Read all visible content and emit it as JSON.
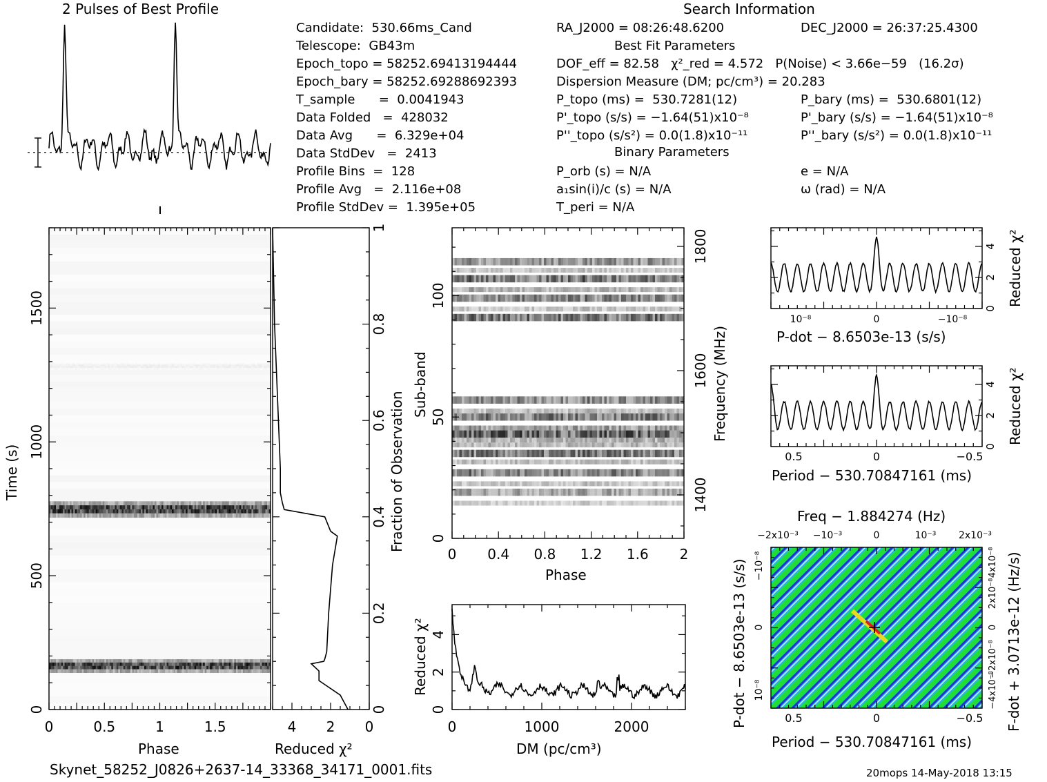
{
  "header": {
    "profile_title": "2 Pulses of Best Profile",
    "search_info_title": "Search Information",
    "best_fit_title": "Best Fit Parameters",
    "binary_title": "Binary Parameters"
  },
  "info_left": [
    "Candidate:  530.66ms_Cand",
    "Telescope:  GB43m",
    "Epoch_topo = 58252.69413194444",
    "Epoch_bary = 58252.69288692393",
    "T_sample      =  0.0041943",
    "Data Folded   =  428032",
    "Data Avg      =  6.329e+04",
    "Data StdDev   =  2413",
    "Profile Bins  =  128",
    "Profile Avg   =  2.116e+08",
    "Profile StdDev =  1.395e+05"
  ],
  "info_mid": [
    "RA_J2000 = 08:26:48.6200",
    "DOF_eff = 82.58   χ²_red = 4.572   P(Noise) < 3.66e−59   (16.2σ)",
    "Dispersion Measure (DM; pc/cm³) = 20.283",
    "P_topo (ms) =  530.7281(12)",
    "P'_topo (s/s) = −1.64(51)x10⁻⁸",
    "P''_topo (s/s²) = 0.0(1.8)x10⁻¹¹",
    "P_orb (s) = N/A",
    "a₁sin(i)/c (s) = N/A",
    "T_peri = N/A"
  ],
  "info_right": [
    "DEC_J2000 = 26:37:25.4300",
    "P_bary (ms) =  530.6801(12)",
    "P'_bary (s/s) = −1.64(51)x10⁻⁸",
    "P''_bary (s/s²) = 0.0(1.8)x10⁻¹¹",
    "e = N/A",
    "ω (rad) = N/A"
  ],
  "footer": {
    "filename": "Skynet_58252_J0826+2637-14_33368_34171_0001.fits",
    "stamp": "20mops 14-May-2018 13:15"
  },
  "colors": {
    "ppdot_bg": "#1fb8e8",
    "ppdot_green": "#22dd33",
    "ppdot_blue": "#2233cc",
    "ppdot_yellow": "#e8d820",
    "ppdot_red": "#e02020"
  },
  "chart_data": [
    {
      "id": "profile",
      "type": "line",
      "title": "2 Pulses of Best Profile",
      "x_range": [
        0,
        2
      ],
      "peaks_phase": [
        0.14,
        1.14
      ],
      "description_free": true
    },
    {
      "id": "time_phase",
      "type": "heatmap",
      "xlabel": "Phase",
      "ylabel": "Time (s)",
      "x_ticks": [
        "0",
        "0.5",
        "1",
        "1.5"
      ],
      "y_ticks": [
        "0",
        "500",
        "1000",
        "1500"
      ],
      "xlim": [
        0,
        2
      ],
      "ylim": [
        0,
        1800
      ],
      "bright_bands_s": [
        [
          138,
          188
        ],
        [
          718,
          778
        ]
      ],
      "faint_bands_s": [
        [
          1270,
          1295
        ]
      ]
    },
    {
      "id": "time_chi2",
      "type": "line",
      "xlabel": "Reduced χ²",
      "ylabel": "Fraction of Observation",
      "x_ticks": [
        "4",
        "2",
        "0"
      ],
      "y_ticks": [
        "0",
        "0.2",
        "0.4",
        "0.6",
        "0.8",
        "1"
      ],
      "xlim": [
        5.0,
        0
      ],
      "ylim": [
        0,
        1
      ],
      "fraction": [
        0.0,
        0.03,
        0.06,
        0.08,
        0.095,
        0.1,
        0.105,
        0.12,
        0.2,
        0.3,
        0.36,
        0.37,
        0.4,
        0.415,
        0.43,
        0.45,
        0.5,
        0.6,
        0.7,
        0.8,
        0.9,
        1.0
      ],
      "chi2": [
        1.1,
        1.5,
        2.6,
        2.6,
        3.0,
        2.35,
        2.3,
        2.2,
        2.1,
        1.9,
        1.65,
        2.0,
        2.3,
        4.4,
        4.5,
        4.6,
        4.6,
        4.7,
        4.8,
        4.9,
        4.95,
        5.0
      ]
    },
    {
      "id": "subband_phase",
      "type": "heatmap",
      "xlabel": "Phase",
      "ylabel": "Sub-band",
      "ylabel_right": "Frequency (MHz)",
      "x_ticks": [
        "0",
        "0.4",
        "0.8",
        "1.2",
        "1.6",
        "2"
      ],
      "y_ticks": [
        "0",
        "50",
        "100"
      ],
      "y_right_ticks": [
        "1400",
        "1600",
        "1800"
      ],
      "xlim": [
        0,
        2
      ],
      "ylim": [
        0,
        128
      ],
      "bands": [
        [
          14,
          15,
          0.3
        ],
        [
          18,
          20,
          0.55
        ],
        [
          22,
          23,
          0.35
        ],
        [
          26,
          28,
          0.75
        ],
        [
          31,
          32,
          0.4
        ],
        [
          34,
          36,
          0.8
        ],
        [
          38,
          39,
          0.45
        ],
        [
          40,
          41,
          0.5
        ],
        [
          42,
          44,
          0.95
        ],
        [
          45,
          46,
          0.6
        ],
        [
          49,
          51,
          0.8
        ],
        [
          52,
          53,
          0.4
        ],
        [
          56,
          58,
          0.7
        ],
        [
          90,
          92,
          0.85
        ],
        [
          94,
          95,
          0.35
        ],
        [
          98,
          100,
          0.75
        ],
        [
          102,
          103,
          0.45
        ],
        [
          106,
          108,
          0.8
        ],
        [
          110,
          111,
          0.35
        ],
        [
          113,
          115,
          0.65
        ]
      ]
    },
    {
      "id": "dm_chi2",
      "type": "line",
      "xlabel": "DM (pc/cm³)",
      "ylabel": "Reduced χ²",
      "x_ticks": [
        "0",
        "1000",
        "2000"
      ],
      "y_ticks": [
        "0",
        "2",
        "4"
      ],
      "xlim": [
        0,
        2600
      ],
      "ylim": [
        0,
        5.6
      ]
    },
    {
      "id": "pdot_chi2",
      "type": "line",
      "xlabel": "P-dot − 8.6503e-13 (s/s)",
      "ylabel": "Reduced χ²",
      "x_ticks": [
        "10⁻⁸",
        "0",
        "−10⁻⁸"
      ],
      "y_ticks": [
        "0",
        "2",
        "4"
      ],
      "ylim": [
        0,
        5.2
      ],
      "peak_at": 0,
      "peak_value": 4.6,
      "oscillations": 16
    },
    {
      "id": "period_chi2",
      "type": "line",
      "xlabel": "Period − 530.70847161 (ms)",
      "ylabel": "Reduced χ²",
      "x_ticks": [
        "0.5",
        "0",
        "−0.5"
      ],
      "y_ticks": [
        "0",
        "2",
        "4"
      ],
      "ylim": [
        0,
        5.2
      ],
      "peak_at": 0,
      "peak_value": 4.6,
      "oscillations": 16
    },
    {
      "id": "p_pdot",
      "type": "heatmap",
      "title": "Freq − 1.884274 (Hz)",
      "xlabel": "Period − 530.70847161 (ms)",
      "ylabel": "P-dot − 8.6503e-13 (s/s)",
      "ylabel_right": "F-dot + 3.0713e-12 (Hz/s)",
      "x_ticks": [
        "0.5",
        "0",
        "−0.5"
      ],
      "top_ticks": [
        "−2x10⁻³",
        "−10⁻³",
        "0",
        "10⁻³",
        "2x10⁻³"
      ],
      "y_ticks": [
        "10⁻⁸",
        "0",
        "−10⁻⁸"
      ],
      "right_ticks": [
        "−4x10⁻⁸",
        "−2x10⁻⁸",
        "0",
        "2x10⁻⁸",
        "4x10⁻⁸"
      ],
      "best_fit_marker": [
        0,
        0
      ]
    }
  ]
}
